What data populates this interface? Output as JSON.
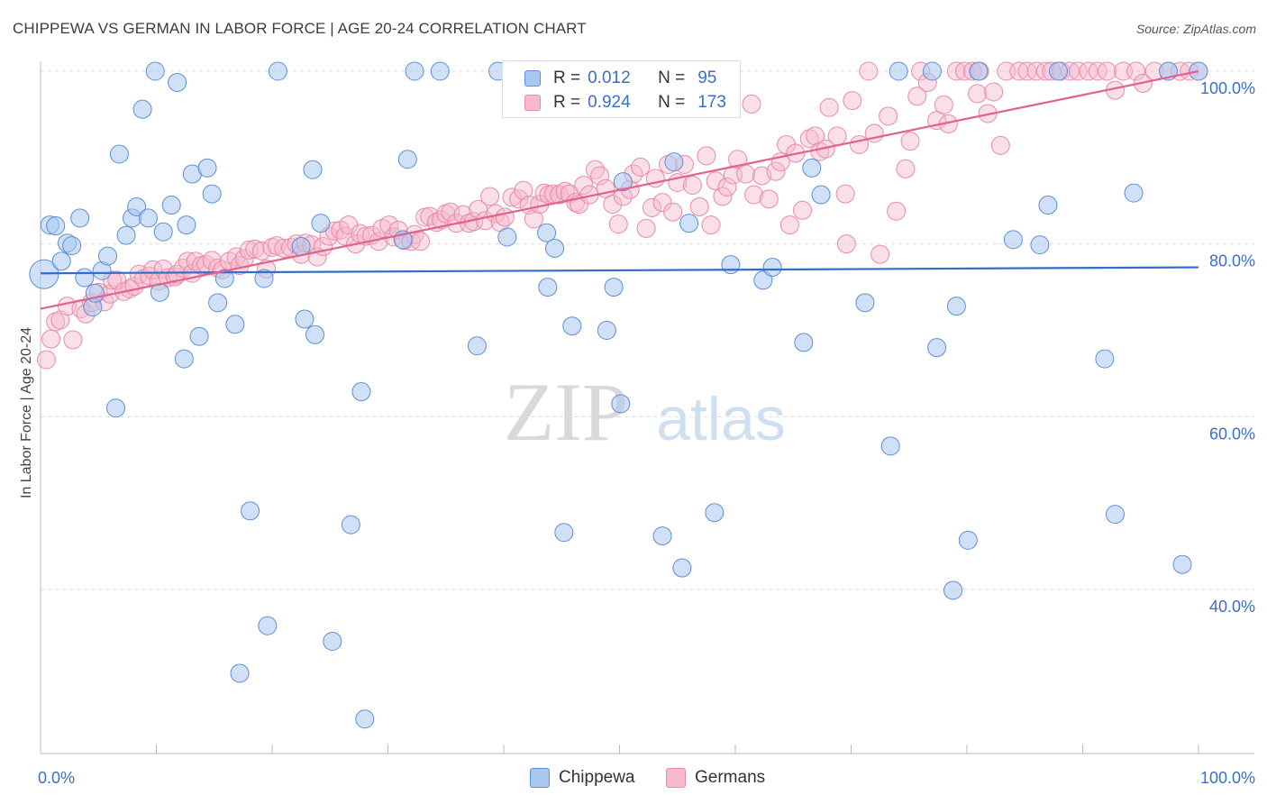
{
  "title": "CHIPPEWA VS GERMAN IN LABOR FORCE | AGE 20-24 CORRELATION CHART",
  "source": "Source: ZipAtlas.com",
  "watermark": {
    "zip": "ZIP",
    "atlas": "atlas"
  },
  "legend_top": [
    {
      "r_label": "R =",
      "r_value": "0.012",
      "n_label": "N =",
      "n_value": "95"
    },
    {
      "r_label": "R =",
      "r_value": "0.924",
      "n_label": "N =",
      "n_value": "173"
    }
  ],
  "legend_bottom": [
    "Chippewa",
    "Germans"
  ],
  "colors": {
    "chippewa_fill": "#a9c8f0",
    "chippewa_stroke": "#5b8fd6",
    "chippewa_line": "#2f6fc9",
    "germans_fill": "#f7b9cd",
    "germans_stroke": "#e88aa8",
    "germans_line": "#e2628e",
    "axis_value_text": "#3a6fc6",
    "grid": "#dcdcdc"
  },
  "chart_data": {
    "type": "scatter",
    "title": "CHIPPEWA VS GERMAN IN LABOR FORCE | AGE 20-24 CORRELATION CHART",
    "xlabel": "",
    "ylabel": "In Labor Force | Age 20-24",
    "xlim": [
      0,
      100
    ],
    "ylim": [
      20,
      102
    ],
    "x_tick_labels": [
      "0.0%",
      "100.0%"
    ],
    "y_tick_labels": [
      "40.0%",
      "60.0%",
      "80.0%",
      "100.0%"
    ],
    "y_ticks": [
      40,
      60,
      80,
      100
    ],
    "grid": true,
    "legend_placement": "top-center",
    "series": [
      {
        "name": "Chippewa",
        "r": 0.012,
        "n": 95,
        "trend": {
          "x": [
            0,
            100
          ],
          "y": [
            76.6,
            77.3
          ]
        },
        "points": [
          [
            0.3,
            76.5
          ],
          [
            0.8,
            82.2
          ],
          [
            1.3,
            82.1
          ],
          [
            1.8,
            78
          ],
          [
            2.3,
            80.1
          ],
          [
            2.7,
            79.8
          ],
          [
            3.4,
            83
          ],
          [
            3.8,
            76.1
          ],
          [
            4.5,
            72.7
          ],
          [
            4.7,
            74.3
          ],
          [
            5.3,
            76.9
          ],
          [
            5.8,
            78.6
          ],
          [
            6.5,
            61
          ],
          [
            6.8,
            90.4
          ],
          [
            7.4,
            81
          ],
          [
            7.9,
            83
          ],
          [
            8.3,
            84.3
          ],
          [
            8.8,
            95.6
          ],
          [
            9.3,
            83
          ],
          [
            9.9,
            100
          ],
          [
            10.3,
            74.4
          ],
          [
            10.6,
            81.4
          ],
          [
            11.3,
            84.5
          ],
          [
            11.8,
            98.7
          ],
          [
            12.4,
            66.7
          ],
          [
            12.6,
            82.2
          ],
          [
            13.1,
            88.1
          ],
          [
            13.7,
            69.3
          ],
          [
            14.4,
            88.8
          ],
          [
            14.8,
            85.8
          ],
          [
            15.3,
            73.2
          ],
          [
            15.9,
            76
          ],
          [
            16.8,
            70.7
          ],
          [
            17.2,
            30.3
          ],
          [
            18.1,
            49.1
          ],
          [
            19.3,
            76
          ],
          [
            19.6,
            35.8
          ],
          [
            20.5,
            100
          ],
          [
            22.5,
            79.7
          ],
          [
            22.8,
            71.3
          ],
          [
            23.5,
            88.6
          ],
          [
            23.7,
            69.5
          ],
          [
            24.2,
            82.4
          ],
          [
            25.2,
            34
          ],
          [
            26.8,
            47.5
          ],
          [
            27.7,
            62.9
          ],
          [
            28,
            25
          ],
          [
            31.3,
            80.5
          ],
          [
            31.7,
            89.8
          ],
          [
            32.3,
            100
          ],
          [
            34.5,
            100
          ],
          [
            37.7,
            68.2
          ],
          [
            39.5,
            100
          ],
          [
            40.3,
            80.8
          ],
          [
            43.7,
            81.3
          ],
          [
            43.8,
            75
          ],
          [
            44.4,
            79.5
          ],
          [
            45.2,
            46.6
          ],
          [
            45.9,
            70.5
          ],
          [
            46.7,
            96
          ],
          [
            48.9,
            70
          ],
          [
            49.5,
            75
          ],
          [
            50.1,
            61.5
          ],
          [
            50.3,
            87.2
          ],
          [
            53.7,
            46.2
          ],
          [
            54.7,
            89.5
          ],
          [
            55.4,
            42.5
          ],
          [
            56,
            82.4
          ],
          [
            56.9,
            100
          ],
          [
            58.2,
            48.9
          ],
          [
            59.6,
            77.6
          ],
          [
            62.4,
            75.8
          ],
          [
            63.2,
            77.3
          ],
          [
            65.9,
            68.6
          ],
          [
            66.6,
            88.8
          ],
          [
            67.4,
            85.7
          ],
          [
            71.2,
            73.2
          ],
          [
            73.4,
            56.6
          ],
          [
            74.1,
            100
          ],
          [
            77,
            100
          ],
          [
            77.4,
            68
          ],
          [
            78.8,
            39.9
          ],
          [
            79.1,
            72.8
          ],
          [
            80.1,
            45.7
          ],
          [
            81,
            100
          ],
          [
            84,
            80.5
          ],
          [
            86.3,
            79.9
          ],
          [
            87,
            84.5
          ],
          [
            87.9,
            100
          ],
          [
            91.9,
            66.7
          ],
          [
            92.8,
            48.7
          ],
          [
            94.4,
            85.9
          ],
          [
            97.4,
            100
          ],
          [
            98.6,
            42.9
          ],
          [
            100,
            100
          ]
        ]
      },
      {
        "name": "Germans",
        "r": 0.924,
        "n": 173,
        "trend": {
          "x": [
            0,
            100
          ],
          "y": [
            72.5,
            100
          ]
        },
        "points": [
          [
            0.5,
            66.6
          ],
          [
            0.9,
            69
          ],
          [
            1.3,
            71
          ],
          [
            1.7,
            71.2
          ],
          [
            2.3,
            72.8
          ],
          [
            2.8,
            68.9
          ],
          [
            3.5,
            72.5
          ],
          [
            3.9,
            71.9
          ],
          [
            4.4,
            73.2
          ],
          [
            5,
            74.4
          ],
          [
            5.5,
            73.3
          ],
          [
            6,
            74.2
          ],
          [
            6.2,
            75.8
          ],
          [
            6.6,
            75.8
          ],
          [
            7.2,
            74.5
          ],
          [
            7.7,
            74.8
          ],
          [
            8.1,
            75.1
          ],
          [
            8.5,
            76.5
          ],
          [
            8.9,
            76
          ],
          [
            9.4,
            76.3
          ],
          [
            9.7,
            77
          ],
          [
            10.2,
            75.7
          ],
          [
            10.6,
            77.1
          ],
          [
            11,
            76.1
          ],
          [
            11.6,
            76.2
          ],
          [
            11.8,
            76.5
          ],
          [
            12.3,
            77.2
          ],
          [
            12.7,
            78
          ],
          [
            13.1,
            76.6
          ],
          [
            13.4,
            78
          ],
          [
            13.9,
            77.5
          ],
          [
            14.3,
            77.6
          ],
          [
            14.8,
            78.1
          ],
          [
            15.3,
            77.2
          ],
          [
            15.7,
            77
          ],
          [
            16.3,
            78
          ],
          [
            16.9,
            78.5
          ],
          [
            17.2,
            77.5
          ],
          [
            17.6,
            78.3
          ],
          [
            18,
            79.3
          ],
          [
            18.5,
            79.4
          ],
          [
            19.1,
            79.2
          ],
          [
            19.5,
            77.1
          ],
          [
            20,
            79.6
          ],
          [
            20.4,
            79.8
          ],
          [
            21,
            79.5
          ],
          [
            21.6,
            79.6
          ],
          [
            22.1,
            80
          ],
          [
            22.5,
            78.8
          ],
          [
            22.9,
            80.1
          ],
          [
            23.4,
            79.9
          ],
          [
            23.9,
            78.5
          ],
          [
            24.4,
            79.7
          ],
          [
            24.9,
            80.9
          ],
          [
            25.4,
            81.5
          ],
          [
            25.9,
            81.6
          ],
          [
            26.3,
            80.9
          ],
          [
            26.6,
            82.2
          ],
          [
            27.2,
            80
          ],
          [
            27.6,
            81.2
          ],
          [
            28.1,
            80.9
          ],
          [
            28.6,
            81
          ],
          [
            29.2,
            80.3
          ],
          [
            29.5,
            81.8
          ],
          [
            30.1,
            82.2
          ],
          [
            30.5,
            80.8
          ],
          [
            30.9,
            81.6
          ],
          [
            31.4,
            80.4
          ],
          [
            32,
            80.3
          ],
          [
            32.3,
            81.1
          ],
          [
            32.8,
            80.3
          ],
          [
            33.2,
            83.1
          ],
          [
            33.6,
            83.2
          ],
          [
            34.2,
            82.5
          ],
          [
            34.6,
            82.8
          ],
          [
            35,
            83.5
          ],
          [
            35.4,
            83.7
          ],
          [
            35.9,
            82.4
          ],
          [
            36.5,
            83.4
          ],
          [
            37,
            82.4
          ],
          [
            37.4,
            82.6
          ],
          [
            37.8,
            84
          ],
          [
            38.4,
            82.7
          ],
          [
            38.8,
            85.5
          ],
          [
            39.3,
            83.5
          ],
          [
            39.7,
            82.5
          ],
          [
            40.1,
            83.1
          ],
          [
            40.7,
            85.4
          ],
          [
            41.3,
            85.2
          ],
          [
            41.7,
            86.2
          ],
          [
            42.2,
            84.5
          ],
          [
            42.6,
            82.9
          ],
          [
            43.1,
            84.6
          ],
          [
            43.5,
            85.9
          ],
          [
            43.9,
            85.7
          ],
          [
            44.3,
            85.8
          ],
          [
            44.8,
            85.7
          ],
          [
            45.3,
            86.1
          ],
          [
            45.7,
            85.8
          ],
          [
            46.2,
            84.8
          ],
          [
            46.5,
            84.6
          ],
          [
            46.9,
            86.8
          ],
          [
            47.4,
            85.7
          ],
          [
            47.9,
            88.6
          ],
          [
            48.3,
            87.9
          ],
          [
            48.8,
            86.4
          ],
          [
            49.4,
            84.6
          ],
          [
            49.9,
            82.3
          ],
          [
            50.3,
            85.5
          ],
          [
            50.9,
            86.3
          ],
          [
            51.2,
            88.1
          ],
          [
            51.8,
            88.9
          ],
          [
            52.3,
            81.8
          ],
          [
            52.8,
            84.2
          ],
          [
            53.1,
            87.6
          ],
          [
            53.7,
            84.8
          ],
          [
            54.2,
            89.2
          ],
          [
            54.6,
            83.7
          ],
          [
            55,
            87.1
          ],
          [
            55.6,
            89.2
          ],
          [
            56.3,
            86.8
          ],
          [
            56.9,
            84.3
          ],
          [
            57.5,
            90.2
          ],
          [
            57.9,
            82.2
          ],
          [
            58.3,
            87.3
          ],
          [
            58.9,
            85.5
          ],
          [
            59.3,
            86.6
          ],
          [
            59.8,
            88
          ],
          [
            60.2,
            89.8
          ],
          [
            60.9,
            88.1
          ],
          [
            61.4,
            96.2
          ],
          [
            61.6,
            85.7
          ],
          [
            62.3,
            87.9
          ],
          [
            62.9,
            85.2
          ],
          [
            63.5,
            88.4
          ],
          [
            63.9,
            89.5
          ],
          [
            64.4,
            91.5
          ],
          [
            64.7,
            82.2
          ],
          [
            65.2,
            90.5
          ],
          [
            65.8,
            83.9
          ],
          [
            66.4,
            92.2
          ],
          [
            66.9,
            92.5
          ],
          [
            67.3,
            90.7
          ],
          [
            67.8,
            91
          ],
          [
            68.1,
            95.8
          ],
          [
            68.8,
            92.5
          ],
          [
            69.5,
            85.8
          ],
          [
            69.6,
            80
          ],
          [
            70.1,
            96.6
          ],
          [
            70.7,
            91.5
          ],
          [
            71.5,
            100
          ],
          [
            72,
            92.8
          ],
          [
            72.5,
            78.8
          ],
          [
            73.2,
            94.8
          ],
          [
            73.9,
            83.8
          ],
          [
            74.7,
            88.7
          ],
          [
            75.1,
            91.9
          ],
          [
            75.7,
            97.1
          ],
          [
            76,
            100
          ],
          [
            76.6,
            98.7
          ],
          [
            77.4,
            94.3
          ],
          [
            78,
            96.1
          ],
          [
            78.4,
            93.9
          ],
          [
            79.1,
            100
          ],
          [
            79.8,
            100
          ],
          [
            80.5,
            100
          ],
          [
            80.9,
            97.4
          ],
          [
            81.1,
            100
          ],
          [
            81.8,
            95.1
          ],
          [
            82.3,
            97.6
          ],
          [
            82.9,
            91.4
          ],
          [
            83.4,
            100
          ],
          [
            84.5,
            100
          ],
          [
            85.2,
            100
          ],
          [
            86,
            100
          ],
          [
            86.8,
            100
          ],
          [
            87.3,
            100
          ],
          [
            88.1,
            100
          ],
          [
            88.9,
            100
          ],
          [
            89.6,
            100
          ],
          [
            90.5,
            100
          ],
          [
            91.3,
            100
          ],
          [
            92.1,
            100
          ],
          [
            92.8,
            97.8
          ],
          [
            93.5,
            100
          ],
          [
            94.6,
            100
          ],
          [
            95.2,
            98.6
          ],
          [
            96.2,
            100
          ],
          [
            97.4,
            100
          ],
          [
            98.4,
            100
          ],
          [
            99.2,
            100
          ],
          [
            100,
            100
          ]
        ]
      }
    ]
  }
}
